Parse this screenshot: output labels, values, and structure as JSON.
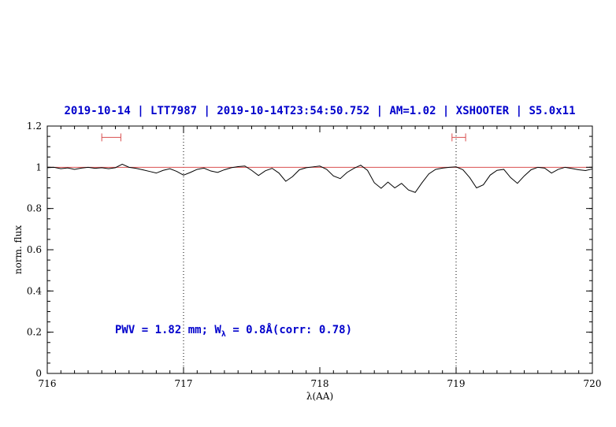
{
  "colors": {
    "accent_blue": "#0000cc",
    "red": "#d94f4f",
    "spectrum_black": "#000000"
  },
  "chart_data": {
    "type": "line",
    "title": "2019-10-14 | LTT7987 | 2019-10-14T23:54:50.752 | AM=1.02 | XSHOOTER | S5.0x11",
    "xlabel": "λ(AA)",
    "ylabel": "norm. flux",
    "xlim": [
      716,
      720
    ],
    "ylim": [
      0,
      1.2
    ],
    "grid": false,
    "xticks": {
      "values": [
        716,
        717,
        718,
        719,
        720
      ],
      "labels": [
        "716",
        "717",
        "718",
        "719",
        "720"
      ]
    },
    "yticks": {
      "values": [
        0,
        0.2,
        0.4,
        0.6,
        0.8,
        1,
        1.2
      ],
      "labels": [
        "0",
        "0.2",
        "0.4",
        "0.6",
        "0.8",
        "1",
        "1.2"
      ]
    },
    "minor_x_step": 0.1,
    "minor_y_step": 0.05,
    "dotted_vlines": [
      717,
      719
    ],
    "continuum_line": {
      "y": 1.0
    },
    "range_markers": [
      {
        "x_center": 716.47,
        "half_width": 0.07,
        "y": 1.145
      },
      {
        "x_center": 719.02,
        "half_width": 0.05,
        "y": 1.145
      }
    ],
    "annotation": {
      "prefix": "PWV = 1.82 mm; W",
      "sub": "λ",
      "suffix": " = 0.8Å(corr: 0.78)"
    },
    "series": [
      {
        "name": "spectrum",
        "color": "#000000",
        "points": [
          [
            716.0,
            0.998
          ],
          [
            716.05,
            1.0
          ],
          [
            716.1,
            0.993
          ],
          [
            716.15,
            0.997
          ],
          [
            716.2,
            0.99
          ],
          [
            716.25,
            0.996
          ],
          [
            716.3,
            1.0
          ],
          [
            716.35,
            0.995
          ],
          [
            716.4,
            0.998
          ],
          [
            716.45,
            0.993
          ],
          [
            716.5,
            0.998
          ],
          [
            716.55,
            1.015
          ],
          [
            716.6,
            1.0
          ],
          [
            716.65,
            0.995
          ],
          [
            716.7,
            0.988
          ],
          [
            716.75,
            0.98
          ],
          [
            716.8,
            0.972
          ],
          [
            716.85,
            0.985
          ],
          [
            716.9,
            0.993
          ],
          [
            716.95,
            0.98
          ],
          [
            717.0,
            0.962
          ],
          [
            717.05,
            0.975
          ],
          [
            717.1,
            0.99
          ],
          [
            717.15,
            0.996
          ],
          [
            717.2,
            0.982
          ],
          [
            717.25,
            0.975
          ],
          [
            717.3,
            0.988
          ],
          [
            717.35,
            0.998
          ],
          [
            717.4,
            1.003
          ],
          [
            717.45,
            1.006
          ],
          [
            717.5,
            0.985
          ],
          [
            717.55,
            0.96
          ],
          [
            717.6,
            0.983
          ],
          [
            717.65,
            0.995
          ],
          [
            717.7,
            0.972
          ],
          [
            717.75,
            0.932
          ],
          [
            717.8,
            0.955
          ],
          [
            717.85,
            0.988
          ],
          [
            717.9,
            0.998
          ],
          [
            717.95,
            1.002
          ],
          [
            718.0,
            1.006
          ],
          [
            718.05,
            0.99
          ],
          [
            718.1,
            0.958
          ],
          [
            718.15,
            0.945
          ],
          [
            718.2,
            0.975
          ],
          [
            718.25,
            0.995
          ],
          [
            718.3,
            1.01
          ],
          [
            718.35,
            0.985
          ],
          [
            718.4,
            0.925
          ],
          [
            718.45,
            0.898
          ],
          [
            718.5,
            0.928
          ],
          [
            718.55,
            0.9
          ],
          [
            718.6,
            0.922
          ],
          [
            718.65,
            0.89
          ],
          [
            718.7,
            0.878
          ],
          [
            718.75,
            0.925
          ],
          [
            718.8,
            0.968
          ],
          [
            718.85,
            0.99
          ],
          [
            718.9,
            0.996
          ],
          [
            718.95,
            1.0
          ],
          [
            719.0,
            1.002
          ],
          [
            719.05,
            0.988
          ],
          [
            719.1,
            0.95
          ],
          [
            719.15,
            0.9
          ],
          [
            719.2,
            0.915
          ],
          [
            719.25,
            0.962
          ],
          [
            719.3,
            0.985
          ],
          [
            719.35,
            0.99
          ],
          [
            719.4,
            0.95
          ],
          [
            719.45,
            0.922
          ],
          [
            719.5,
            0.958
          ],
          [
            719.55,
            0.988
          ],
          [
            719.6,
            1.0
          ],
          [
            719.65,
            0.996
          ],
          [
            719.7,
            0.972
          ],
          [
            719.75,
            0.99
          ],
          [
            719.8,
            1.0
          ],
          [
            719.85,
            0.994
          ],
          [
            719.9,
            0.988
          ],
          [
            719.95,
            0.984
          ],
          [
            720.0,
            0.992
          ]
        ]
      }
    ]
  }
}
